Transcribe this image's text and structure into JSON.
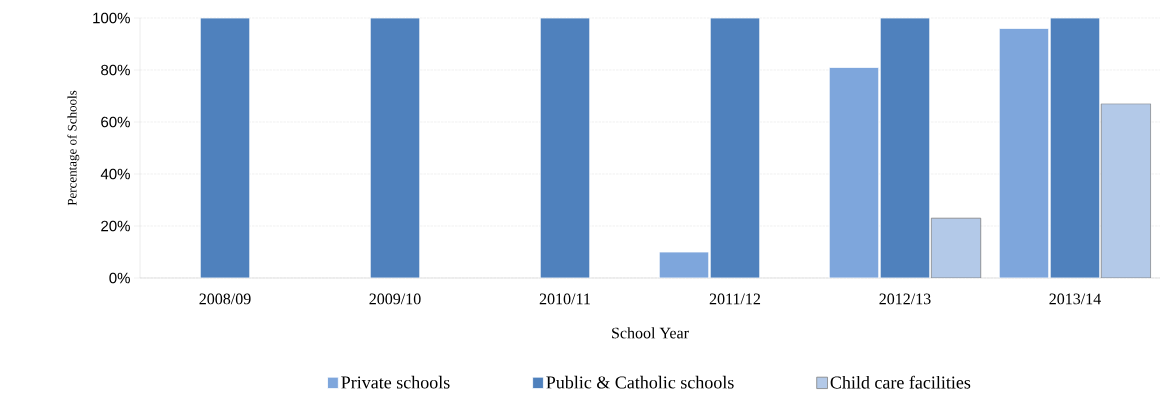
{
  "chart_data": {
    "type": "bar",
    "xlabel": "School Year",
    "ylabel": "Percentage of Schools",
    "categories": [
      "2008/09",
      "2009/10",
      "2010/11",
      "2011/12",
      "2012/13",
      "2013/14"
    ],
    "series": [
      {
        "name": "Private schools",
        "color": "#7ea6dc",
        "values": [
          0,
          0,
          0,
          10,
          81,
          96
        ]
      },
      {
        "name": "Public & Catholic schools",
        "color": "#4f81bd",
        "values": [
          100,
          100,
          100,
          100,
          100,
          100
        ]
      },
      {
        "name": "Child care facilities",
        "color": "#b3c9e8",
        "values": [
          0,
          0,
          0,
          0,
          23,
          67
        ]
      }
    ],
    "ylim": [
      0,
      100
    ],
    "yticks": [
      {
        "value": 0,
        "label": "0%"
      },
      {
        "value": 20,
        "label": "20%"
      },
      {
        "value": 40,
        "label": "40%"
      },
      {
        "value": 60,
        "label": "60%"
      },
      {
        "value": 80,
        "label": "80%"
      },
      {
        "value": 100,
        "label": "100%"
      }
    ],
    "grid": "y",
    "legend": "bottom"
  }
}
